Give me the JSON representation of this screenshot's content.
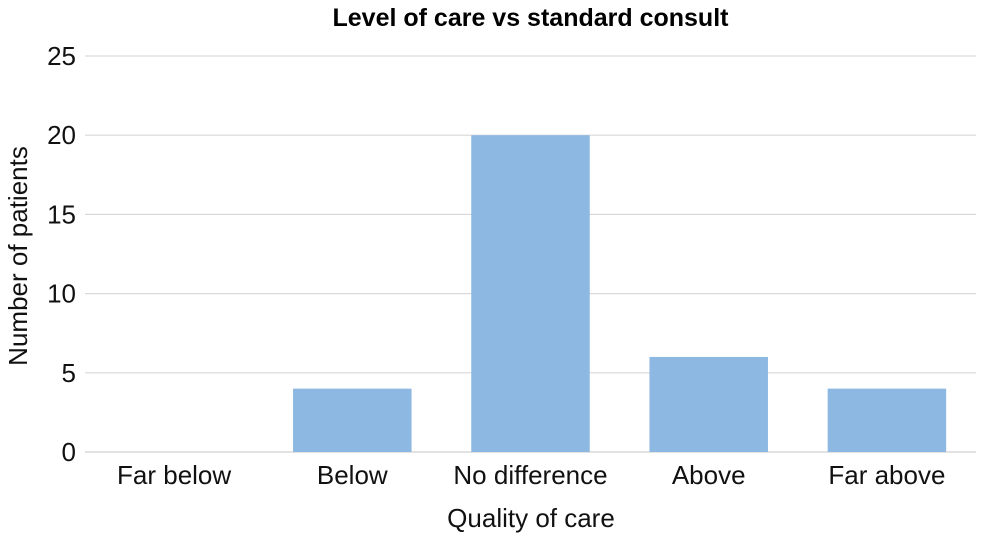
{
  "chart_data": {
    "type": "bar",
    "title": "Level of care vs standard consult",
    "xlabel": "Quality of care",
    "ylabel": "Number of patients",
    "categories": [
      "Far below",
      "Below",
      "No difference",
      "Above",
      "Far above"
    ],
    "values": [
      0,
      4,
      20,
      6,
      4
    ],
    "ylim": [
      0,
      25
    ],
    "yticks": [
      "0",
      "5",
      "10",
      "15",
      "20",
      "25"
    ],
    "grid": true,
    "bar_color": "#8db8e2",
    "grid_color": "#d9d9d9"
  }
}
